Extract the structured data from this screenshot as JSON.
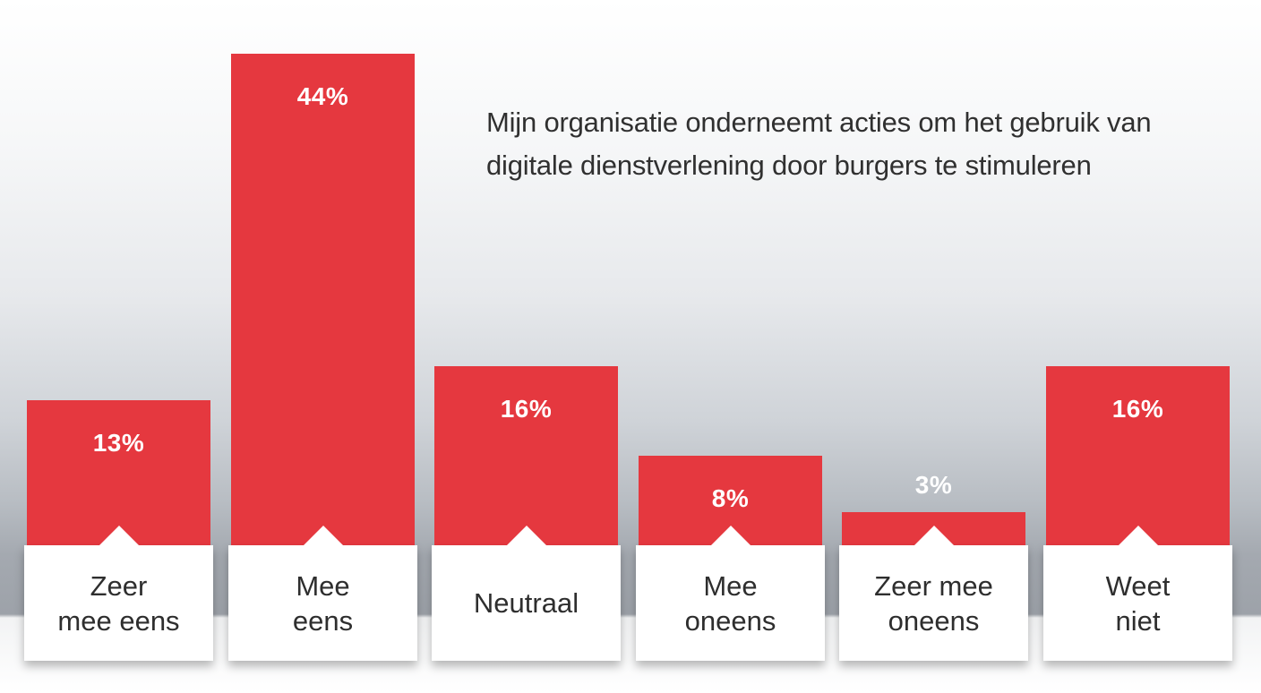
{
  "chart_data": {
    "type": "bar",
    "title": "Mijn organisatie onderneemt acties om het gebruik van digitale dienstverlening door burgers te stimuleren",
    "categories": [
      "Zeer mee eens",
      "Mee eens",
      "Neutraal",
      "Mee oneens",
      "Zeer mee oneens",
      "Weet niet"
    ],
    "category_display": [
      "Zeer\nmee eens",
      "Mee\neens",
      "Neutraal",
      "Mee\noneens",
      "Zeer mee\noneens",
      "Weet\nniet"
    ],
    "values": [
      13,
      44,
      16,
      8,
      3,
      16
    ],
    "value_labels": [
      "13%",
      "44%",
      "16%",
      "8%",
      "3%",
      "16%"
    ],
    "unit": "%",
    "ylim": [
      0,
      44
    ],
    "grid": false,
    "legend": "none",
    "bar_color": "#e5383f"
  }
}
